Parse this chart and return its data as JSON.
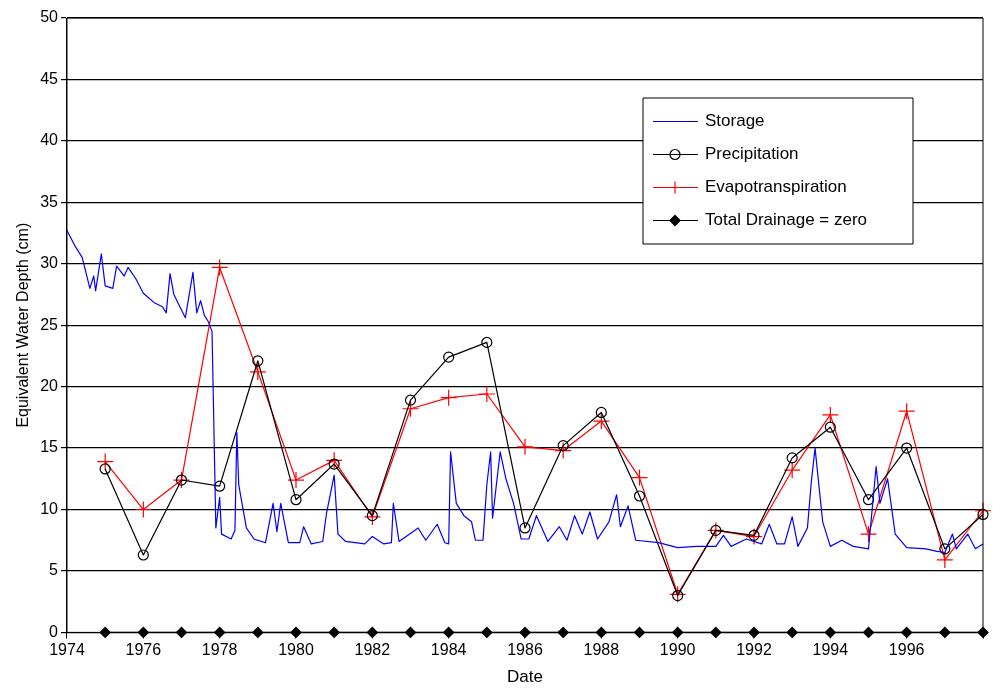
{
  "chart_data": {
    "type": "line",
    "xlabel": "Date",
    "ylabel": "Equivalent Water Depth (cm)",
    "xlim": [
      1974,
      1998
    ],
    "xticks": [
      1974,
      1976,
      1978,
      1980,
      1982,
      1984,
      1986,
      1988,
      1990,
      1992,
      1994,
      1996,
      {
        "value": 1998,
        "label": null
      }
    ],
    "ylim": [
      0,
      50
    ],
    "yticks": [
      0,
      5,
      10,
      15,
      20,
      25,
      30,
      35,
      40,
      45,
      50
    ],
    "grid": "y",
    "legend": "top right",
    "series": [
      {
        "name": "Storage",
        "color": "#0000ff",
        "marker": "none",
        "x": [
          1974.0,
          1974.2,
          1974.4,
          1974.6,
          1974.7,
          1974.75,
          1974.9,
          1975.0,
          1975.2,
          1975.3,
          1975.5,
          1975.6,
          1975.8,
          1976.0,
          1976.3,
          1976.5,
          1976.6,
          1976.7,
          1976.8,
          1977.1,
          1977.3,
          1977.4,
          1977.5,
          1977.6,
          1977.7,
          1977.8,
          1977.9,
          1978.0,
          1978.05,
          1978.3,
          1978.4,
          1978.45,
          1978.5,
          1978.7,
          1978.9,
          1979.2,
          1979.4,
          1979.5,
          1979.6,
          1979.8,
          1980.1,
          1980.2,
          1980.4,
          1980.7,
          1980.8,
          1981.0,
          1981.1,
          1981.3,
          1981.8,
          1982.0,
          1982.3,
          1982.5,
          1982.55,
          1982.7,
          1983.2,
          1983.4,
          1983.7,
          1983.9,
          1984.0,
          1984.05,
          1984.2,
          1984.4,
          1984.6,
          1984.7,
          1984.9,
          1985.0,
          1985.1,
          1985.15,
          1985.35,
          1985.5,
          1985.7,
          1985.9,
          1986.1,
          1986.3,
          1986.6,
          1986.9,
          1987.1,
          1987.3,
          1987.5,
          1987.7,
          1987.9,
          1988.2,
          1988.4,
          1988.5,
          1988.7,
          1988.9,
          1989.5,
          1990.0,
          1990.5,
          1991.0,
          1991.2,
          1991.4,
          1991.8,
          1992.2,
          1992.4,
          1992.6,
          1992.8,
          1993.0,
          1993.15,
          1993.4,
          1993.5,
          1993.6,
          1993.8,
          1994.0,
          1994.3,
          1994.6,
          1995.0,
          1995.2,
          1995.3,
          1995.5,
          1995.7,
          1996.0,
          1996.5,
          1996.8,
          1997.0,
          1997.2,
          1997.3,
          1997.6,
          1997.8,
          1998.0
        ],
        "values": [
          32.7,
          31.5,
          30.5,
          28.0,
          29.0,
          27.8,
          30.8,
          28.2,
          28.0,
          29.8,
          29.0,
          29.7,
          28.8,
          27.6,
          26.8,
          26.5,
          26.0,
          29.2,
          27.5,
          25.6,
          29.3,
          26.0,
          27.0,
          25.8,
          25.3,
          24.5,
          8.5,
          11.0,
          8.0,
          7.6,
          8.3,
          16.3,
          12.0,
          8.5,
          7.6,
          7.3,
          10.5,
          8.2,
          10.5,
          7.3,
          7.3,
          8.6,
          7.2,
          7.4,
          9.7,
          12.8,
          8.0,
          7.4,
          7.2,
          7.8,
          7.2,
          7.3,
          10.5,
          7.4,
          8.5,
          7.5,
          8.8,
          7.3,
          7.2,
          14.7,
          10.5,
          9.5,
          9.0,
          7.5,
          7.5,
          12.0,
          14.7,
          9.3,
          14.7,
          12.5,
          10.5,
          7.6,
          7.6,
          9.5,
          7.4,
          8.6,
          7.5,
          9.5,
          8.0,
          9.8,
          7.6,
          9.0,
          11.2,
          8.6,
          10.3,
          7.5,
          7.3,
          6.9,
          7.0,
          7.0,
          7.9,
          7.0,
          7.6,
          7.2,
          8.8,
          7.2,
          7.2,
          9.4,
          7.0,
          8.5,
          12.2,
          15.0,
          9.0,
          7.0,
          7.5,
          7.0,
          6.8,
          13.5,
          10.5,
          12.5,
          8.0,
          6.9,
          6.8,
          6.6,
          6.5,
          8.0,
          6.8,
          8.0,
          6.8,
          7.2
        ]
      },
      {
        "name": "Precipitation",
        "color": "#000000",
        "marker": "circle",
        "x": [
          1975,
          1976,
          1977,
          1978,
          1979,
          1980,
          1981,
          1982,
          1983,
          1984,
          1985,
          1986,
          1987,
          1988,
          1989,
          1990,
          1991,
          1992,
          1993,
          1994,
          1995,
          1996,
          1997,
          1998
        ],
        "values": [
          13.3,
          6.3,
          12.4,
          11.9,
          22.1,
          10.8,
          13.7,
          9.5,
          18.9,
          22.4,
          23.6,
          8.5,
          15.2,
          17.9,
          11.1,
          3.0,
          8.3,
          7.9,
          14.2,
          16.7,
          10.8,
          15.0,
          6.8,
          9.6
        ]
      },
      {
        "name": "Evapotranspiration",
        "color": "#ff0000",
        "marker": "cross",
        "x": [
          1975,
          1976,
          1977,
          1978,
          1979,
          1980,
          1981,
          1982,
          1983,
          1984,
          1985,
          1986,
          1987,
          1988,
          1989,
          1990,
          1991,
          1992,
          1993,
          1994,
          1995,
          1996,
          1997,
          1998
        ],
        "values": [
          13.9,
          10.0,
          12.4,
          29.7,
          21.2,
          12.4,
          14.0,
          9.4,
          18.2,
          19.1,
          19.4,
          15.1,
          14.8,
          17.2,
          12.6,
          3.1,
          8.3,
          7.8,
          13.2,
          17.7,
          8.0,
          18.0,
          5.9,
          9.9
        ]
      },
      {
        "name": "Total Drainage = zero",
        "color": "#000000",
        "marker": "diamond",
        "x": [
          1975,
          1976,
          1977,
          1978,
          1979,
          1980,
          1981,
          1982,
          1983,
          1984,
          1985,
          1986,
          1987,
          1988,
          1989,
          1990,
          1991,
          1992,
          1993,
          1994,
          1995,
          1996,
          1997,
          1998
        ],
        "values": [
          0,
          0,
          0,
          0,
          0,
          0,
          0,
          0,
          0,
          0,
          0,
          0,
          0,
          0,
          0,
          0,
          0,
          0,
          0,
          0,
          0,
          0,
          0,
          0
        ]
      }
    ]
  }
}
